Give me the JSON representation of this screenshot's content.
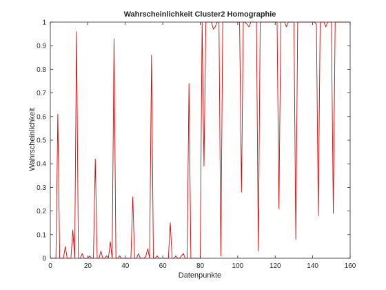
{
  "chart_data": {
    "type": "line",
    "title": "Wahrscheinlichkeit Cluster2 Homographie",
    "xlabel": "Datenpunkte",
    "ylabel": "Wahrscheinlichkeit",
    "xlim": [
      0,
      160
    ],
    "ylim": [
      0,
      1
    ],
    "xticks": [
      0,
      20,
      40,
      60,
      80,
      100,
      120,
      140,
      160
    ],
    "yticks": [
      0,
      0.1,
      0.2,
      0.3,
      0.4,
      0.5,
      0.6,
      0.7,
      0.8,
      0.9,
      1
    ],
    "grid": false,
    "box": true,
    "series": [
      {
        "color": "#e00000",
        "x": [
          1,
          2,
          3,
          4,
          5,
          6,
          7,
          8,
          9,
          10,
          11,
          12,
          13,
          14,
          15,
          16,
          17,
          18,
          19,
          20,
          21,
          22,
          23,
          24,
          25,
          26,
          27,
          28,
          29,
          30,
          31,
          32,
          33,
          34,
          35,
          36,
          37,
          38,
          39,
          40,
          41,
          42,
          43,
          44,
          45,
          46,
          47,
          48,
          49,
          50,
          51,
          52,
          53,
          54,
          55,
          56,
          57,
          58,
          59,
          60,
          61,
          62,
          63,
          64,
          65,
          66,
          67,
          68,
          69,
          70,
          71,
          72,
          73,
          74,
          75,
          76,
          77,
          78,
          79,
          80,
          81,
          82,
          83,
          84,
          85,
          86,
          87,
          88,
          89,
          90,
          91,
          92,
          93,
          94,
          95,
          96,
          97,
          98,
          99,
          100,
          101,
          102,
          103,
          104,
          105,
          106,
          107,
          108,
          109,
          110,
          111,
          112,
          113,
          114,
          115,
          116,
          117,
          118,
          119,
          120,
          121,
          122,
          123,
          124,
          125,
          126,
          127,
          128,
          129,
          130,
          131,
          132,
          133,
          134,
          135,
          136,
          137,
          138,
          139,
          140,
          141,
          142,
          143,
          144,
          145,
          146,
          147,
          148,
          149,
          150,
          151,
          152,
          153,
          154,
          155,
          156,
          157,
          158,
          159,
          160
        ],
        "y": [
          0,
          0,
          0,
          0.61,
          0,
          0,
          0,
          0.05,
          0,
          0,
          0,
          0.12,
          0,
          0.96,
          0,
          0,
          0.02,
          0,
          0,
          0,
          0.01,
          0,
          0,
          0.42,
          0,
          0,
          0.03,
          0,
          0,
          0.01,
          0,
          0.07,
          0,
          0.93,
          0,
          0,
          0.01,
          0,
          0,
          0,
          0,
          0,
          0,
          0.26,
          0,
          0,
          0.02,
          0,
          0,
          0,
          0.01,
          0.04,
          0,
          0.86,
          0,
          0,
          0.01,
          0,
          0,
          0,
          0,
          0,
          0,
          0.15,
          0,
          0,
          0.01,
          0,
          0,
          0.01,
          0.02,
          0,
          0,
          0.74,
          0,
          0,
          0,
          0,
          0,
          0,
          1.0,
          0.39,
          1.0,
          1.0,
          1.0,
          1.0,
          0.97,
          0.98,
          1.0,
          1.0,
          0.01,
          1.0,
          1.0,
          1.0,
          1.0,
          1.0,
          1.0,
          1.0,
          1.0,
          1.0,
          1.0,
          0.28,
          1.0,
          1.0,
          0.99,
          0.98,
          1.0,
          1.0,
          1.0,
          1.0,
          0.03,
          1.0,
          1.0,
          1.0,
          1.0,
          1.0,
          1.0,
          1.0,
          1.0,
          1.0,
          1.0,
          0.21,
          1.0,
          1.0,
          1.0,
          0.98,
          1.0,
          1.0,
          1.0,
          1.0,
          0.08,
          1.0,
          1.0,
          1.0,
          1.0,
          1.0,
          1.0,
          1.0,
          1.0,
          1.0,
          1.0,
          0.99,
          0.18,
          1.0,
          1.0,
          1.0,
          0.98,
          1.0,
          1.0,
          1.0,
          0.19,
          1.0,
          1.0,
          1.0,
          1.0,
          1.0,
          1.0,
          1.0,
          1.0,
          1.0
        ]
      }
    ]
  }
}
